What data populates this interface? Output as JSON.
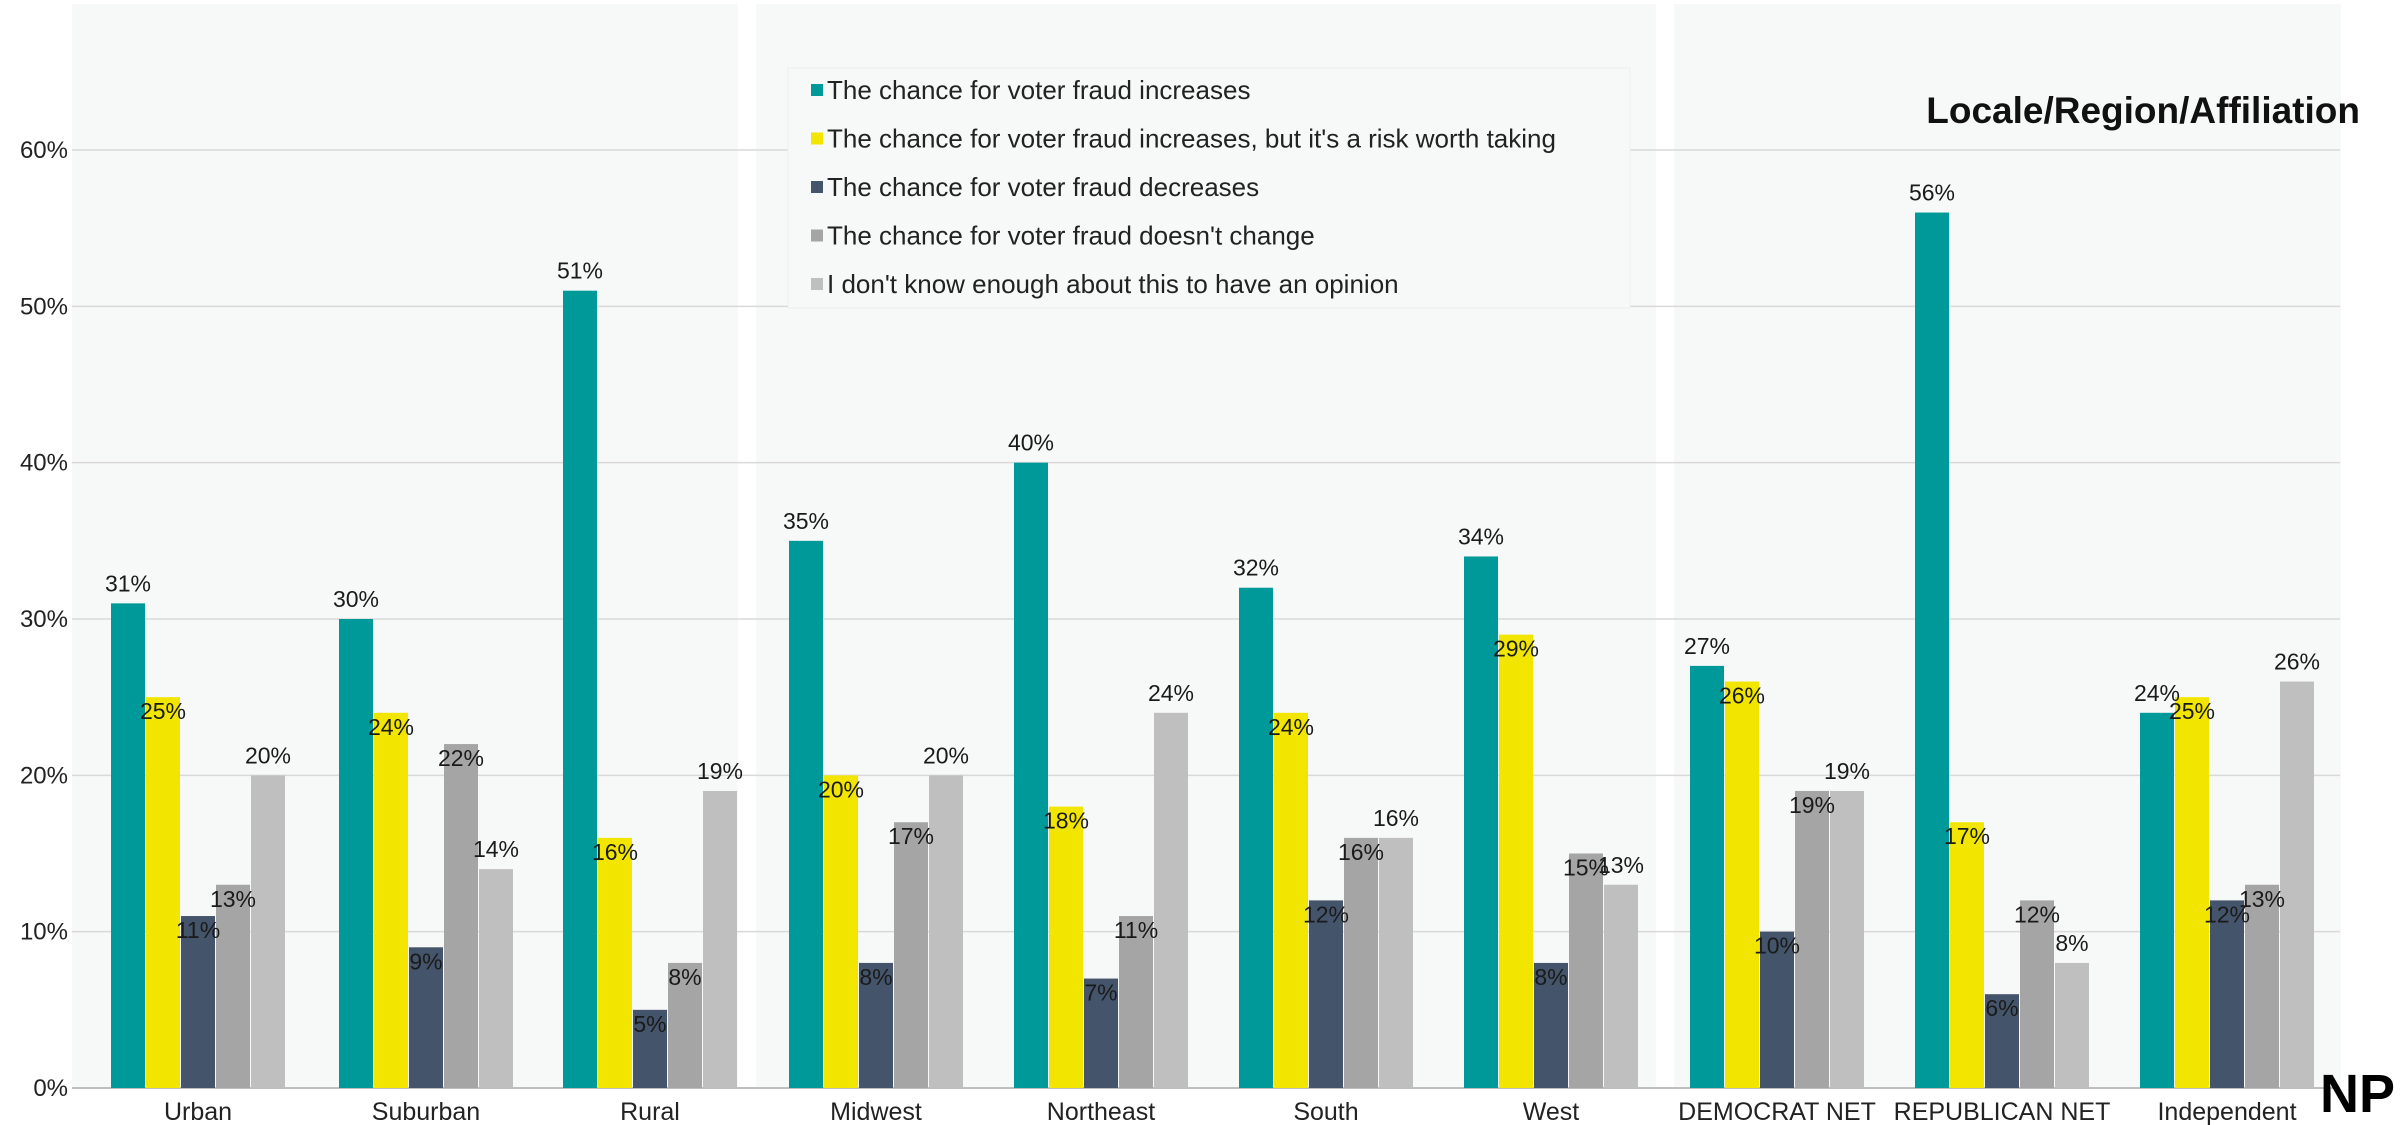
{
  "chart_data": {
    "type": "bar",
    "title": "Locale/Region/Affiliation",
    "categories": [
      "Urban",
      "Suburban",
      "Rural",
      "Midwest",
      "Northeast",
      "South",
      "West",
      "DEMOCRAT NET",
      "REPUBLICAN NET",
      "Independent"
    ],
    "groups": [
      {
        "name": "Locale",
        "categories": [
          "Urban",
          "Suburban",
          "Rural"
        ]
      },
      {
        "name": "Region",
        "categories": [
          "Midwest",
          "Northeast",
          "South",
          "West"
        ]
      },
      {
        "name": "Affiliation",
        "categories": [
          "DEMOCRAT NET",
          "REPUBLICAN NET",
          "Independent"
        ]
      }
    ],
    "series": [
      {
        "name": "The chance for voter fraud increases",
        "color": "#009999",
        "values": [
          31,
          30,
          51,
          35,
          40,
          32,
          34,
          27,
          56,
          24
        ],
        "labels": [
          "31%",
          "30%",
          "51%",
          "35%",
          "40%",
          "32%",
          "34%",
          "27%",
          "56%",
          "24%"
        ]
      },
      {
        "name": "The chance for voter fraud increases, but it's a risk worth taking",
        "color": "#F2E600",
        "values": [
          25,
          24,
          16,
          20,
          18,
          24,
          29,
          26,
          17,
          25
        ],
        "labels": [
          "25%",
          "24%",
          "16%",
          "20%",
          "18%",
          "24%",
          "29%",
          "26%",
          "17%",
          "25%"
        ]
      },
      {
        "name": "The chance for voter fraud decreases",
        "color": "#44546A",
        "values": [
          11,
          9,
          5,
          8,
          7,
          12,
          8,
          10,
          6,
          12
        ],
        "labels": [
          "11%",
          "9%",
          "5%",
          "8%",
          "7%",
          "12%",
          "8%",
          "10%",
          "6%",
          "12%"
        ]
      },
      {
        "name": "The chance for voter fraud doesn't change",
        "color": "#A5A5A5",
        "values": [
          13,
          22,
          8,
          17,
          11,
          16,
          15,
          19,
          12,
          13
        ],
        "labels": [
          "13%",
          "22%",
          "8%",
          "17%",
          "11%",
          "16%",
          "15%",
          "19%",
          "12%",
          "13%"
        ]
      },
      {
        "name": "I don't know enough about this to have an opinion",
        "color": "#BFBFBF",
        "values": [
          20,
          14,
          19,
          20,
          24,
          16,
          13,
          19,
          8,
          26
        ],
        "labels": [
          "20%",
          "14%",
          "19%",
          "20%",
          "24%",
          "16%",
          "13%",
          "19%",
          "8%",
          "26%"
        ]
      }
    ],
    "ylim": [
      0,
      60
    ],
    "yticks": [
      "0%",
      "10%",
      "20%",
      "30%",
      "40%",
      "50%",
      "60%"
    ],
    "grid": true,
    "legend_position": "top-center"
  },
  "logo": {
    "text": "NP"
  }
}
